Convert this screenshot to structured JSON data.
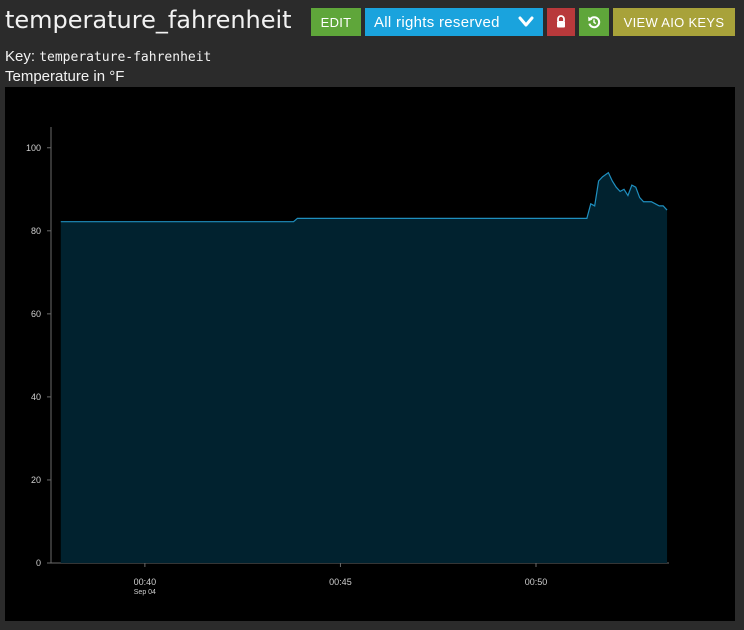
{
  "header": {
    "title": "temperature_fahrenheit",
    "edit_label": "EDIT",
    "license_label": "All rights reserved",
    "keys_label": "VIEW AIO KEYS",
    "icons": {
      "license": "chevron-down-icon",
      "lock": "lock-icon",
      "refresh": "refresh-icon"
    }
  },
  "meta": {
    "key_label": "Key:",
    "key_value": "temperature-fahrenheit",
    "description": "Temperature in °F"
  },
  "colors": {
    "edit": "#5fa63a",
    "license": "#1aa3dd",
    "lock": "#b8393b",
    "refresh": "#5fa63a",
    "keys": "#a8a23a",
    "line": "#1f8fbf",
    "area": "#01222f"
  },
  "chart_data": {
    "type": "area",
    "title": "",
    "xlabel": "",
    "ylabel": "",
    "ylim": [
      0,
      105
    ],
    "yticks": [
      0,
      20,
      40,
      60,
      80,
      100
    ],
    "xticks": [
      {
        "label": "00:40",
        "sub": "Sep 04",
        "t": 40
      },
      {
        "label": "00:45",
        "sub": "",
        "t": 45
      },
      {
        "label": "00:50",
        "sub": "",
        "t": 50
      }
    ],
    "xlim": [
      37.6,
      53.4
    ],
    "grid": false,
    "series": [
      {
        "x": [
          37.85,
          43.8,
          43.9,
          51.3,
          51.4,
          51.5,
          51.6,
          51.7,
          51.85,
          51.95,
          52.05,
          52.15,
          52.25,
          52.35,
          52.45,
          52.55,
          52.65,
          52.75,
          52.85,
          52.95,
          53.05,
          53.15,
          53.25,
          53.35
        ],
        "y": [
          82.2,
          82.2,
          83.0,
          83.0,
          86.5,
          86.0,
          92.0,
          93.0,
          94.0,
          92.0,
          90.5,
          89.5,
          90.0,
          88.5,
          91.0,
          90.5,
          88.0,
          87.0,
          87.0,
          87.0,
          86.5,
          86.0,
          86.0,
          85.0
        ]
      }
    ]
  }
}
